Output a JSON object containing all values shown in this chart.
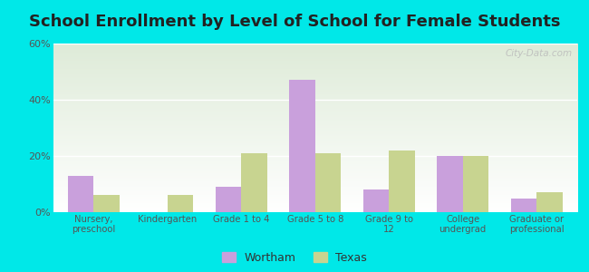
{
  "title": "School Enrollment by Level of School for Female Students",
  "categories": [
    "Nursery,\npreschool",
    "Kindergarten",
    "Grade 1 to 4",
    "Grade 5 to 8",
    "Grade 9 to\n12",
    "College\nundergrad",
    "Graduate or\nprofessional"
  ],
  "wortham": [
    13,
    0,
    9,
    47,
    8,
    20,
    5
  ],
  "texas": [
    6,
    6,
    21,
    21,
    22,
    20,
    7
  ],
  "wortham_color": "#c9a0dc",
  "texas_color": "#c8d490",
  "bar_width": 0.35,
  "ylim": [
    0,
    60
  ],
  "yticks": [
    0,
    20,
    40,
    60
  ],
  "ytick_labels": [
    "0%",
    "20%",
    "40%",
    "60%"
  ],
  "background_outer": "#00e8e8",
  "background_inner_top": "#deebd8",
  "background_inner_bottom": "#ffffff",
  "title_fontsize": 13,
  "legend_labels": [
    "Wortham",
    "Texas"
  ],
  "watermark": "City-Data.com"
}
